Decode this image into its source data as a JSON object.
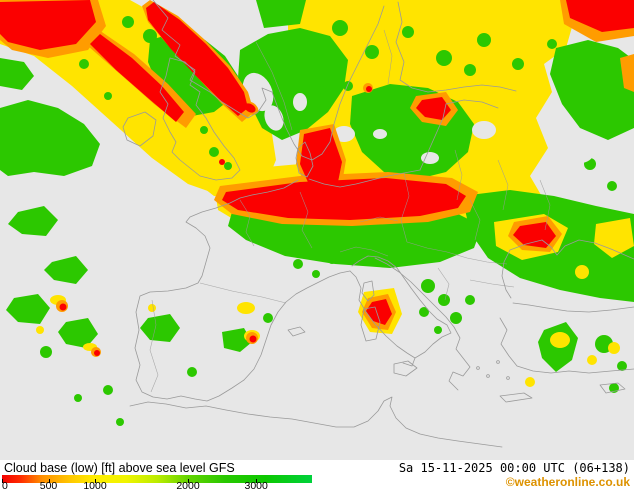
{
  "map": {
    "colors": {
      "clear": "#e7e7e7",
      "green": "#2cc800",
      "yellow": "#ffe400",
      "orange": "#ff9c00",
      "red": "#fb0000",
      "coastline": "#9a9a9a"
    }
  },
  "footer": {
    "title": "Cloud base (low) [ft] above sea level GFS",
    "datetime": "Sa 15-11-2025 00:00 UTC (06+138)",
    "copyright": "©weatheronline.co.uk",
    "copyright_color": "#dd9200",
    "scale": {
      "labels": [
        "0",
        "500",
        "1000",
        "2000",
        "3000"
      ],
      "positions_pct": [
        0,
        15,
        30,
        60,
        82
      ],
      "gradient": [
        {
          "pos": 0,
          "color": "#f40000"
        },
        {
          "pos": 6,
          "color": "#ff2c00"
        },
        {
          "pos": 13,
          "color": "#ff9000"
        },
        {
          "pos": 22,
          "color": "#ffc800"
        },
        {
          "pos": 30,
          "color": "#ffee00"
        },
        {
          "pos": 40,
          "color": "#f0f400"
        },
        {
          "pos": 50,
          "color": "#bcec00"
        },
        {
          "pos": 60,
          "color": "#64d400"
        },
        {
          "pos": 72,
          "color": "#28c800"
        },
        {
          "pos": 85,
          "color": "#0cc800"
        },
        {
          "pos": 100,
          "color": "#00d23c"
        }
      ]
    }
  }
}
